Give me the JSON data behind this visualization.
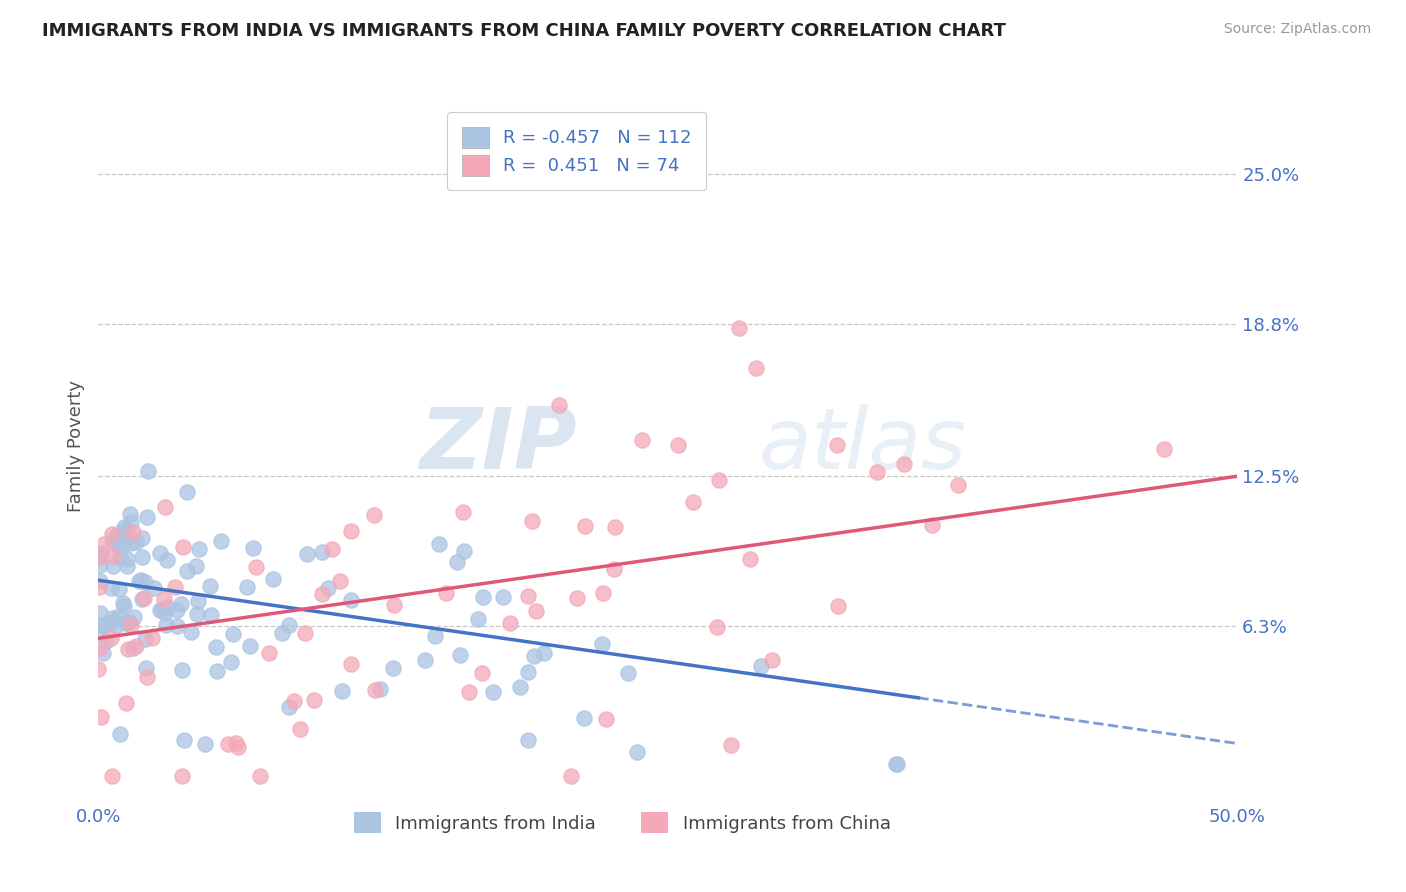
{
  "title": "IMMIGRANTS FROM INDIA VS IMMIGRANTS FROM CHINA FAMILY POVERTY CORRELATION CHART",
  "source": "Source: ZipAtlas.com",
  "ylabel": "Family Poverty",
  "xlim": [
    0.0,
    0.5
  ],
  "ylim": [
    -0.01,
    0.285
  ],
  "xtick_labels": [
    "0.0%",
    "50.0%"
  ],
  "xtick_positions": [
    0.0,
    0.5
  ],
  "ytick_positions": [
    0.063,
    0.125,
    0.188,
    0.25
  ],
  "ytick_labels": [
    "6.3%",
    "12.5%",
    "18.8%",
    "25.0%"
  ],
  "india_color": "#aac4e2",
  "china_color": "#f4a8b8",
  "india_line_color": "#4472c4",
  "china_line_color": "#e05878",
  "india_R": -0.457,
  "india_N": 112,
  "china_R": 0.451,
  "china_N": 74,
  "legend_label_india": "Immigrants from India",
  "legend_label_china": "Immigrants from China",
  "background_color": "#ffffff",
  "grid_color": "#c8c8c8",
  "title_color": "#222222",
  "axis_label_color": "#555555",
  "tick_label_color": "#4472c4",
  "india_line_intercept": 0.082,
  "india_line_slope": -0.135,
  "china_line_intercept": 0.058,
  "china_line_slope": 0.134
}
